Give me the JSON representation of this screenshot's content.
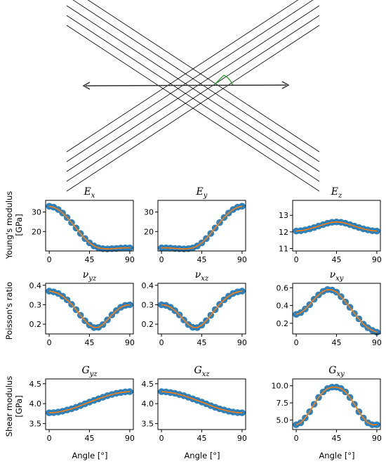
{
  "diagram": {
    "arrow_color": "#333333",
    "angle_marker_color": "#2ca02c",
    "line_count_per_direction": 5
  },
  "style": {
    "marker_color": "#1f77b4",
    "line_color": "#ff7f0e"
  },
  "row_labels": [
    "Young's modulus",
    "[GPa]",
    "Poisson's ratio",
    "Shear modulus",
    "[GPa]"
  ],
  "x_axis_label": "Angle [°]",
  "chart_data": [
    {
      "type": "line",
      "title_sym": "E",
      "title_sub": "x",
      "xlim": [
        -4,
        94
      ],
      "ylim": [
        10,
        36
      ],
      "xticks": [
        0,
        45,
        90
      ],
      "yticks": [
        20,
        30
      ],
      "ytick_labels": [
        "20",
        "30"
      ],
      "x": [
        0,
        5,
        10,
        15,
        20,
        25,
        30,
        35,
        40,
        45,
        50,
        55,
        60,
        65,
        70,
        75,
        80,
        85,
        90
      ],
      "values": [
        33.0,
        32.5,
        31.3,
        29.5,
        27.2,
        24.6,
        21.8,
        19.0,
        16.4,
        14.2,
        12.6,
        11.6,
        11.2,
        11.1,
        11.2,
        11.3,
        11.5,
        11.6,
        11.6
      ]
    },
    {
      "type": "line",
      "title_sym": "E",
      "title_sub": "y",
      "xlim": [
        -4,
        94
      ],
      "ylim": [
        10,
        36
      ],
      "xticks": [
        0,
        45,
        90
      ],
      "yticks": [
        20,
        30
      ],
      "ytick_labels": [
        "20",
        "30"
      ],
      "x": [
        0,
        5,
        10,
        15,
        20,
        25,
        30,
        35,
        40,
        45,
        50,
        55,
        60,
        65,
        70,
        75,
        80,
        85,
        90
      ],
      "values": [
        11.6,
        11.6,
        11.5,
        11.3,
        11.2,
        11.1,
        11.2,
        11.6,
        12.6,
        14.2,
        16.4,
        19.0,
        21.8,
        24.6,
        27.2,
        29.5,
        31.3,
        32.5,
        33.0
      ]
    },
    {
      "type": "line",
      "title_sym": "E",
      "title_sub": "z",
      "xlim": [
        -4,
        94
      ],
      "ylim": [
        10.85,
        13.9
      ],
      "xticks": [
        0,
        45,
        90
      ],
      "yticks": [
        11,
        12,
        13
      ],
      "ytick_labels": [
        "11",
        "12",
        "13"
      ],
      "x": [
        0,
        5,
        10,
        15,
        20,
        25,
        30,
        35,
        40,
        45,
        50,
        55,
        60,
        65,
        70,
        75,
        80,
        85,
        90
      ],
      "values": [
        12.05,
        12.07,
        12.12,
        12.18,
        12.26,
        12.35,
        12.44,
        12.52,
        12.58,
        12.6,
        12.58,
        12.52,
        12.44,
        12.35,
        12.26,
        12.18,
        12.12,
        12.07,
        12.05
      ]
    },
    {
      "type": "line",
      "title_sym": "ν",
      "title_sub": "yz",
      "xlim": [
        -4,
        94
      ],
      "ylim": [
        0.15,
        0.41
      ],
      "xticks": [
        0,
        45,
        90
      ],
      "yticks": [
        0.2,
        0.3,
        0.4
      ],
      "ytick_labels": [
        "0.2",
        "0.3",
        "0.4"
      ],
      "x": [
        0,
        5,
        10,
        15,
        20,
        25,
        30,
        35,
        40,
        45,
        50,
        55,
        60,
        65,
        70,
        75,
        80,
        85,
        90
      ],
      "values": [
        0.37,
        0.366,
        0.358,
        0.344,
        0.325,
        0.302,
        0.275,
        0.246,
        0.218,
        0.196,
        0.183,
        0.184,
        0.198,
        0.222,
        0.248,
        0.27,
        0.287,
        0.297,
        0.3
      ]
    },
    {
      "type": "line",
      "title_sym": "ν",
      "title_sub": "xz",
      "xlim": [
        -4,
        94
      ],
      "ylim": [
        0.15,
        0.41
      ],
      "xticks": [
        0,
        45,
        90
      ],
      "yticks": [
        0.2,
        0.3,
        0.4
      ],
      "ytick_labels": [
        "0.2",
        "0.3",
        "0.4"
      ],
      "x": [
        0,
        5,
        10,
        15,
        20,
        25,
        30,
        35,
        40,
        45,
        50,
        55,
        60,
        65,
        70,
        75,
        80,
        85,
        90
      ],
      "values": [
        0.3,
        0.297,
        0.287,
        0.27,
        0.248,
        0.222,
        0.198,
        0.184,
        0.183,
        0.196,
        0.218,
        0.246,
        0.275,
        0.302,
        0.325,
        0.344,
        0.358,
        0.366,
        0.37
      ]
    },
    {
      "type": "line",
      "title_sym": "ν",
      "title_sub": "xy",
      "xlim": [
        -4,
        94
      ],
      "ylim": [
        0.08,
        0.65
      ],
      "xticks": [
        0,
        45,
        90
      ],
      "yticks": [
        0.2,
        0.4,
        0.6
      ],
      "ytick_labels": [
        "0.2",
        "0.4",
        "0.6"
      ],
      "x": [
        0,
        5,
        10,
        15,
        20,
        25,
        30,
        35,
        40,
        45,
        50,
        55,
        60,
        65,
        70,
        75,
        80,
        85,
        90
      ],
      "values": [
        0.3,
        0.32,
        0.36,
        0.41,
        0.47,
        0.52,
        0.56,
        0.58,
        0.575,
        0.55,
        0.5,
        0.44,
        0.38,
        0.31,
        0.25,
        0.19,
        0.15,
        0.12,
        0.1
      ]
    },
    {
      "type": "line",
      "title_sym": "G",
      "title_sub": "yz",
      "xlim": [
        -4,
        94
      ],
      "ylim": [
        3.35,
        4.62
      ],
      "xticks": [
        0,
        45,
        90
      ],
      "yticks": [
        3.5,
        4.0,
        4.5
      ],
      "ytick_labels": [
        "3.5",
        "4.0",
        "4.5"
      ],
      "x": [
        0,
        5,
        10,
        15,
        20,
        25,
        30,
        35,
        40,
        45,
        50,
        55,
        60,
        65,
        70,
        75,
        80,
        85,
        90
      ],
      "values": [
        3.77,
        3.775,
        3.79,
        3.81,
        3.84,
        3.87,
        3.91,
        3.95,
        3.995,
        4.04,
        4.08,
        4.12,
        4.16,
        4.2,
        4.23,
        4.26,
        4.28,
        4.295,
        4.3
      ]
    },
    {
      "type": "line",
      "title_sym": "G",
      "title_sub": "xz",
      "xlim": [
        -4,
        94
      ],
      "ylim": [
        3.35,
        4.62
      ],
      "xticks": [
        0,
        45,
        90
      ],
      "yticks": [
        3.5,
        4.0,
        4.5
      ],
      "ytick_labels": [
        "3.5",
        "4.0",
        "4.5"
      ],
      "x": [
        0,
        5,
        10,
        15,
        20,
        25,
        30,
        35,
        40,
        45,
        50,
        55,
        60,
        65,
        70,
        75,
        80,
        85,
        90
      ],
      "values": [
        4.3,
        4.295,
        4.28,
        4.26,
        4.23,
        4.2,
        4.16,
        4.12,
        4.08,
        4.04,
        3.995,
        3.95,
        3.91,
        3.87,
        3.84,
        3.81,
        3.79,
        3.775,
        3.77
      ]
    },
    {
      "type": "line",
      "title_sym": "G",
      "title_sub": "xy",
      "xlim": [
        -4,
        94
      ],
      "ylim": [
        3.6,
        11.0
      ],
      "xticks": [
        0,
        45,
        90
      ],
      "yticks": [
        5.0,
        7.5,
        10.0
      ],
      "ytick_labels": [
        "5.0",
        "7.5",
        "10.0"
      ],
      "x": [
        0,
        5,
        10,
        15,
        20,
        25,
        30,
        35,
        40,
        45,
        50,
        55,
        60,
        65,
        70,
        75,
        80,
        85,
        90
      ],
      "values": [
        4.3,
        4.6,
        5.3,
        6.2,
        7.3,
        8.3,
        9.1,
        9.6,
        9.8,
        9.8,
        9.6,
        9.1,
        8.3,
        7.3,
        6.2,
        5.3,
        4.6,
        4.3,
        4.3
      ]
    }
  ]
}
